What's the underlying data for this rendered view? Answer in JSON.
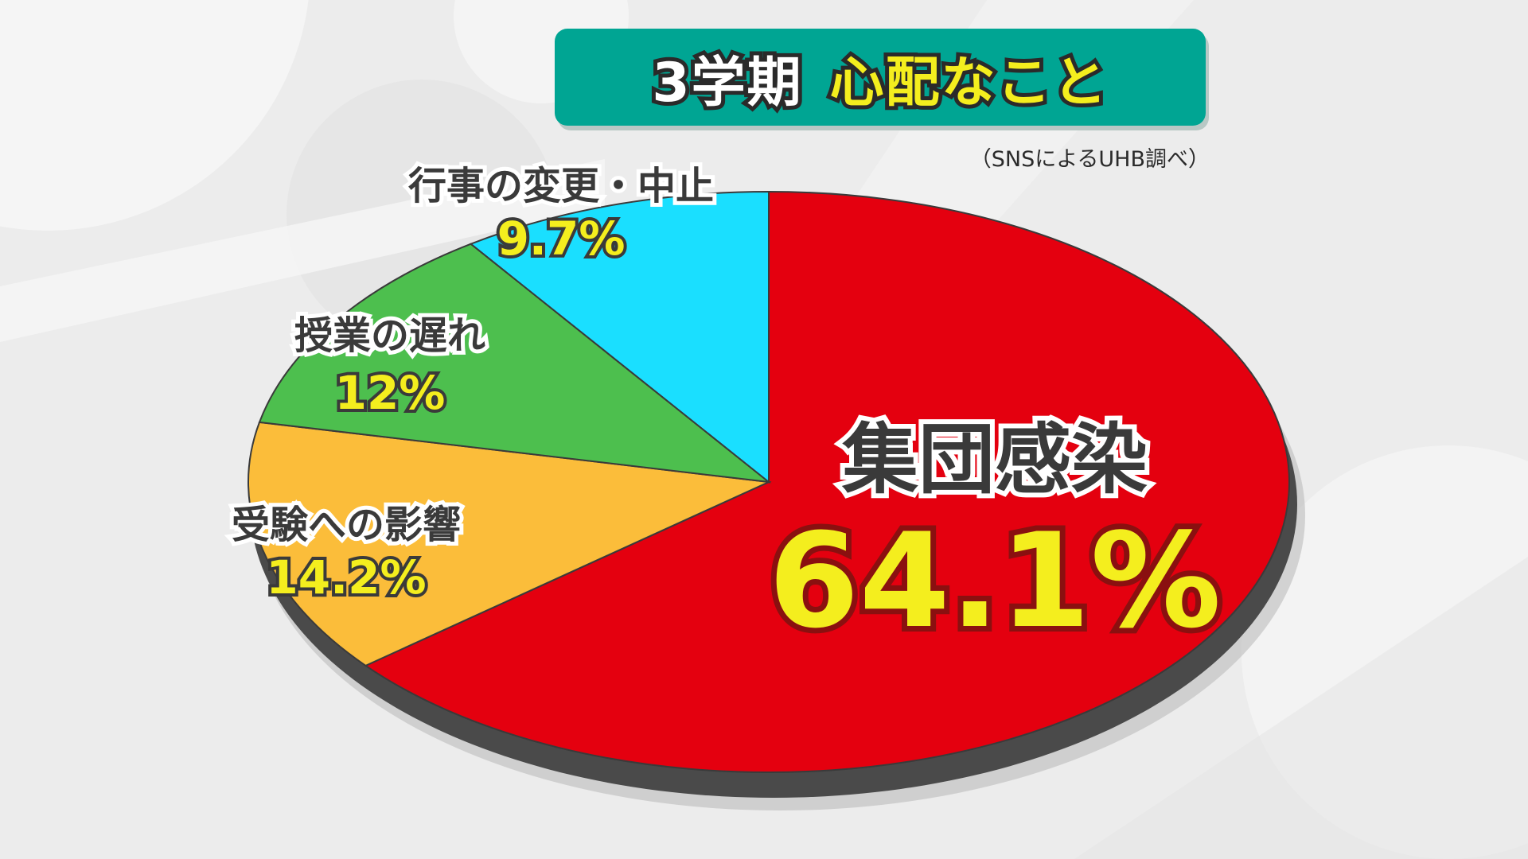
{
  "header": {
    "title_main": "3学期",
    "title_sub": "心配なこと"
  },
  "source_note": "（SNSによるUHB調べ）",
  "chart_data": {
    "type": "pie",
    "title": "3学期 心配なこと",
    "slices": [
      {
        "label": "集団感染",
        "value": 64.1,
        "value_label": "64.1%",
        "color": "#e4000f"
      },
      {
        "label": "受験への影響",
        "value": 14.2,
        "value_label": "14.2%",
        "color": "#fbbd3a"
      },
      {
        "label": "授業の遅れ",
        "value": 12,
        "value_label": "12%",
        "color": "#4dbf4e"
      },
      {
        "label": "行事の変更・中止",
        "value": 9.7,
        "value_label": "9.7%",
        "color": "#1adfff"
      }
    ],
    "start": "12 o'clock",
    "direction": "clockwise",
    "style": "3d-tilted"
  }
}
